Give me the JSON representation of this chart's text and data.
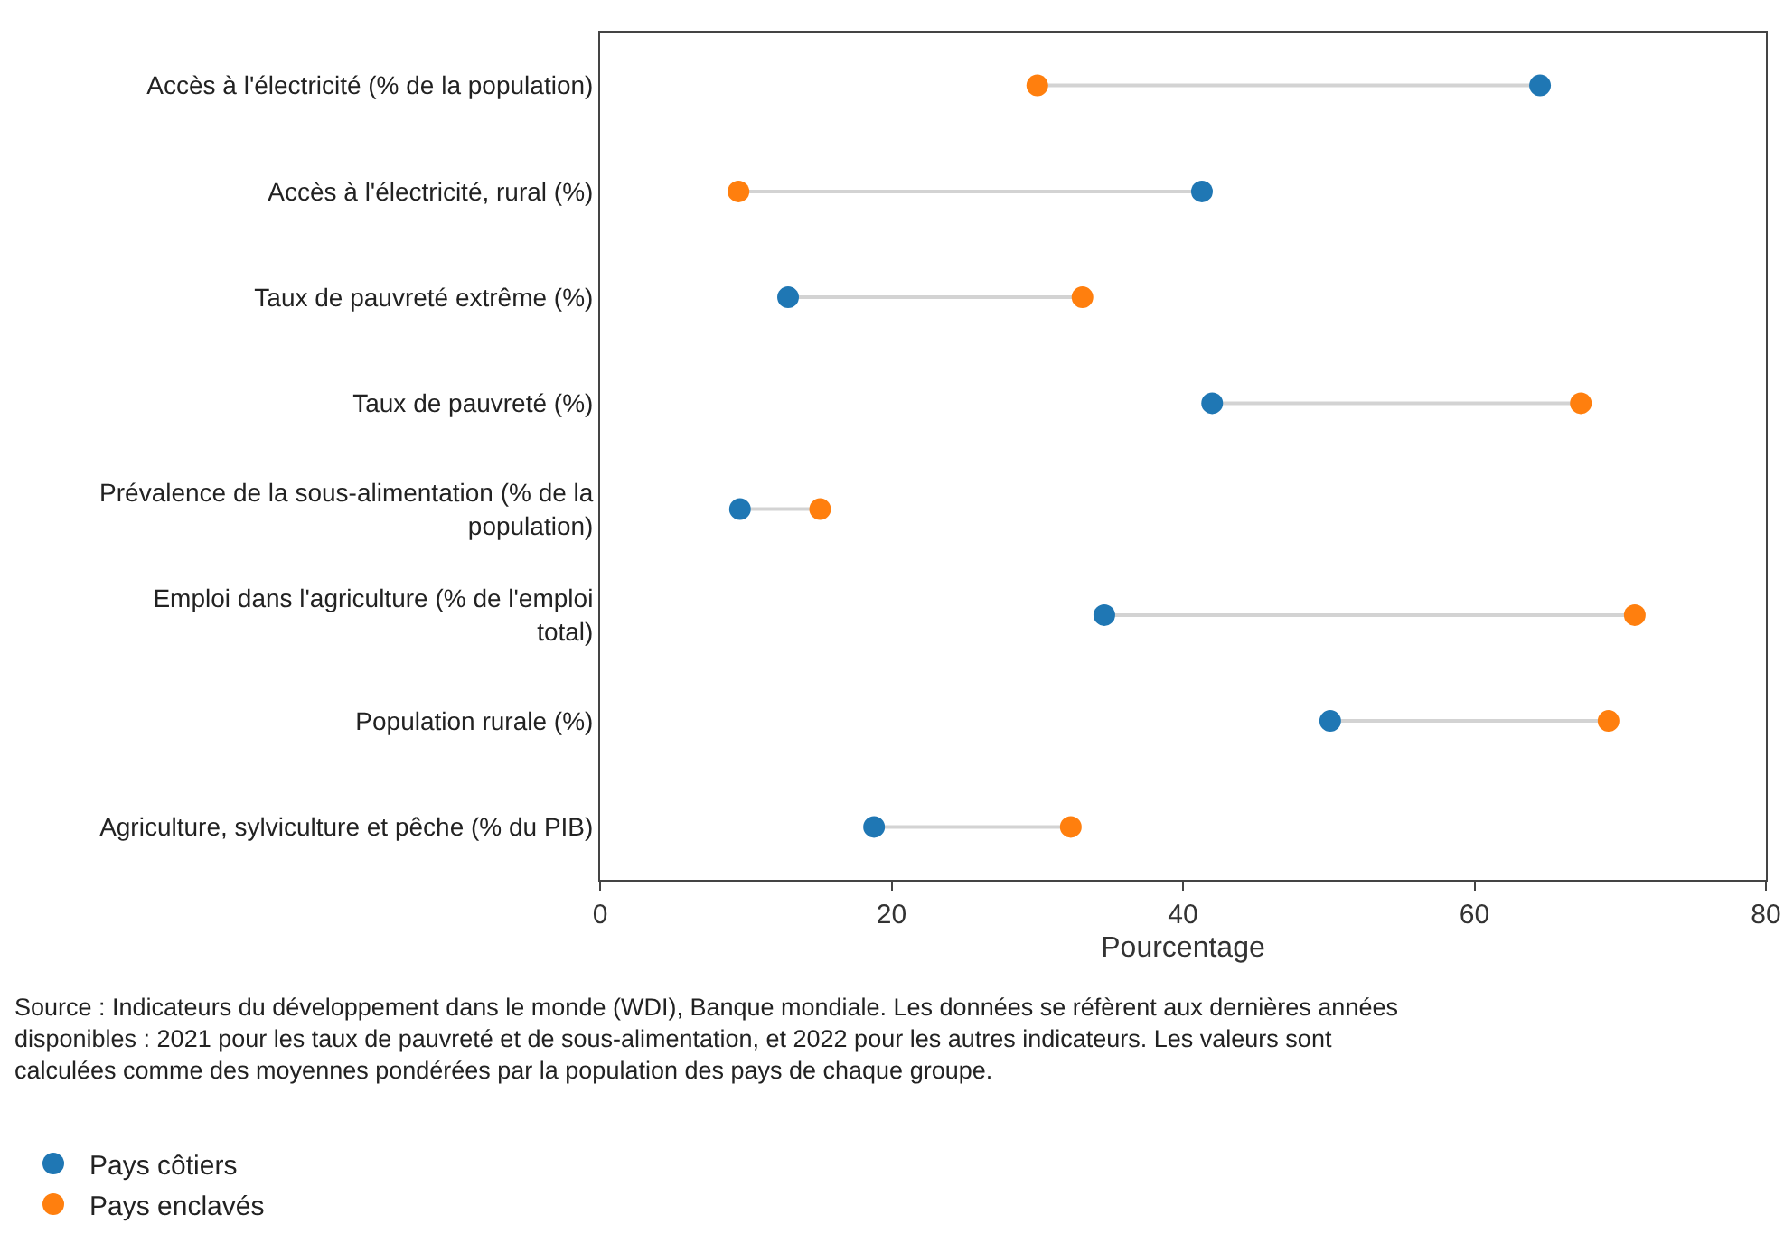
{
  "chart_data": {
    "type": "scatter",
    "orientation": "horizontal",
    "categories": [
      "Accès à l'électricité (% de la population)",
      "Accès à l'électricité, rural (%)",
      "Taux de pauvreté extrême (%)",
      "Taux de pauvreté (%)",
      "Prévalence de la sous-alimentation (% de la population)",
      "Emploi dans l'agriculture (% de l'emploi total)",
      "Population rurale (%)",
      "Agriculture, sylviculture et pêche (% du PIB)"
    ],
    "series": [
      {
        "name": "Pays côtiers",
        "color": "#1f77b4",
        "values": [
          64.5,
          41.3,
          12.9,
          42.0,
          9.6,
          34.6,
          50.1,
          18.8
        ]
      },
      {
        "name": "Pays enclavés",
        "color": "#ff7f0e",
        "values": [
          30.0,
          9.5,
          33.1,
          67.3,
          15.1,
          71.0,
          69.2,
          32.3
        ]
      }
    ],
    "xlabel": "Pourcentage",
    "xlim": [
      0,
      80
    ],
    "xticks": [
      0,
      20,
      40,
      60,
      80
    ],
    "marker": "circle",
    "grid": false,
    "legend": "bottom left",
    "annotations": [
      "Source : Indicateurs du développement dans le monde (WDI), Banque mondiale. Les données se réfèrent aux dernières années disponibles : 2021 pour les taux de pauvreté et de sous-alimentation, et 2022 pour les autres indicateurs. Les valeurs sont calculées comme des moyennes pondérées par la population des pays de chaque groupe."
    ]
  }
}
